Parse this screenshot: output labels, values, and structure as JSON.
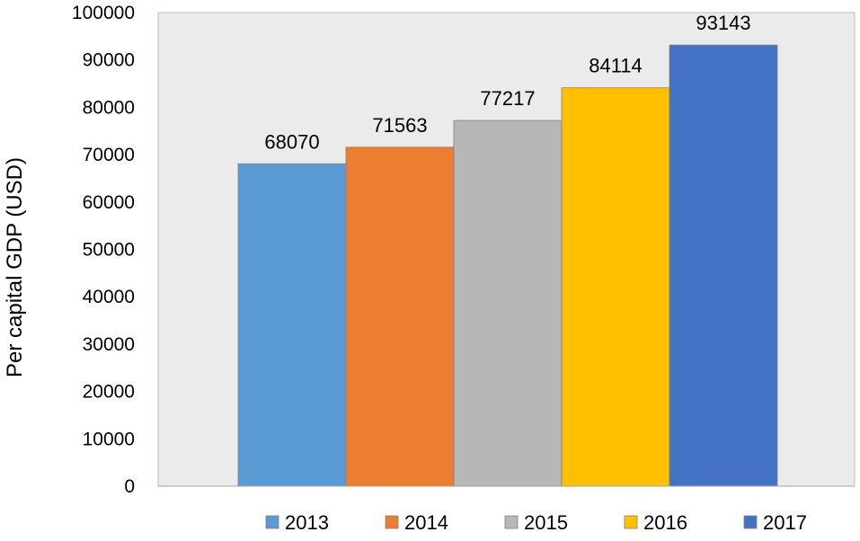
{
  "chart_data": {
    "type": "bar",
    "title": "",
    "xlabel": "",
    "ylabel": "Per capital GDP (USD)",
    "ylim": [
      0,
      100000
    ],
    "yticks": [
      0,
      10000,
      20000,
      30000,
      40000,
      50000,
      60000,
      70000,
      80000,
      90000,
      100000
    ],
    "grid": false,
    "legend_position": "bottom",
    "plot_background": "#ebebeb",
    "series": [
      {
        "name": "2013",
        "value": 68070,
        "color": "#5b9bd5"
      },
      {
        "name": "2014",
        "value": 71563,
        "color": "#ed7d31"
      },
      {
        "name": "2015",
        "value": 77217,
        "color": "#b7b7b7"
      },
      {
        "name": "2016",
        "value": 84114,
        "color": "#ffc000"
      },
      {
        "name": "2017",
        "value": 93143,
        "color": "#4472c4"
      }
    ]
  }
}
